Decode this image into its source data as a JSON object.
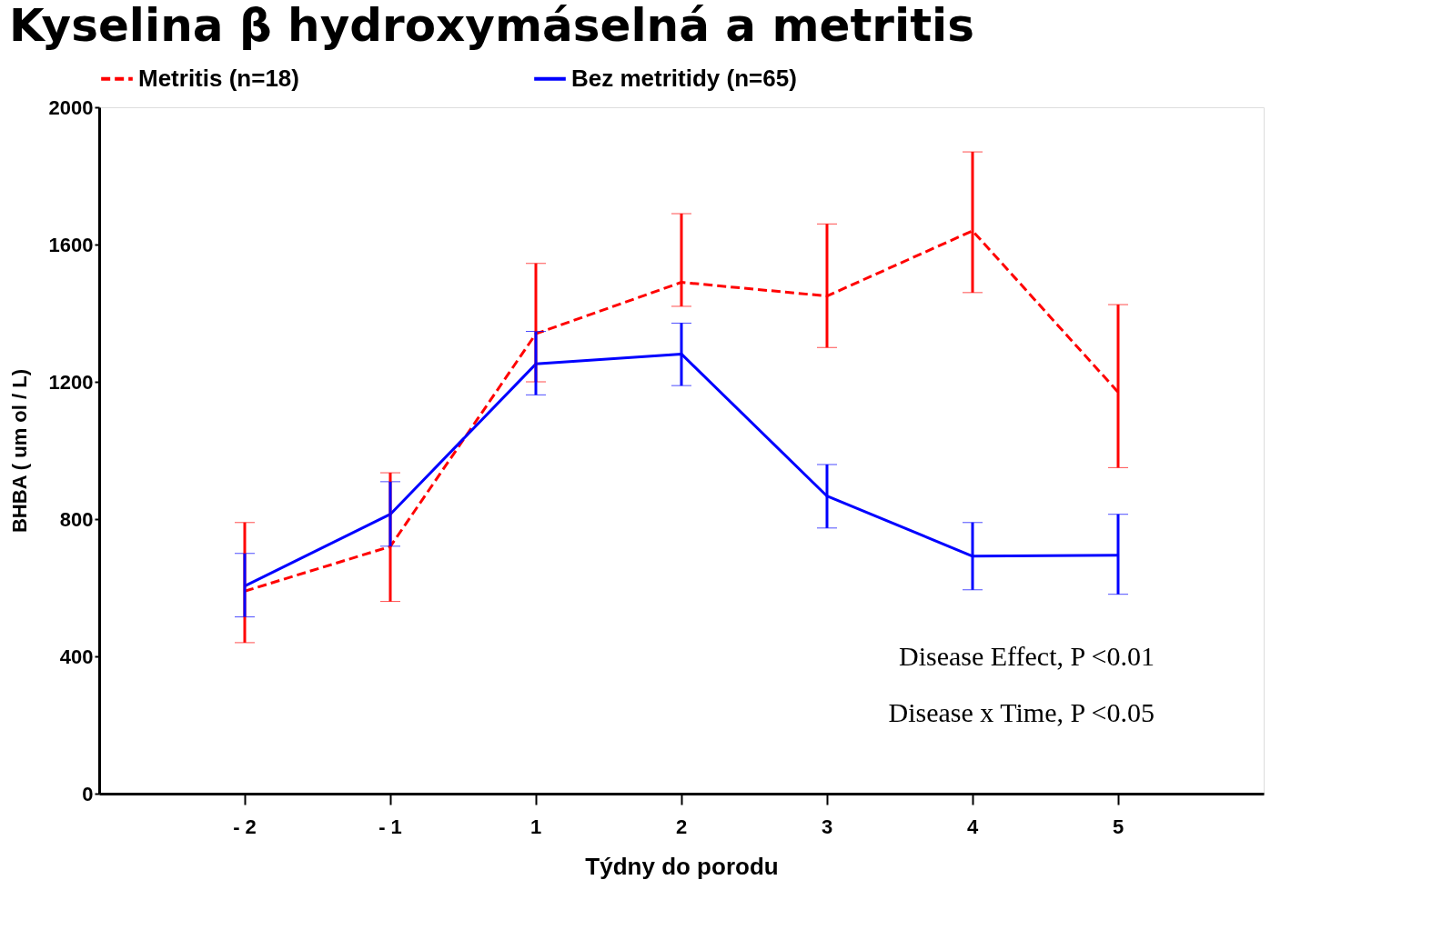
{
  "chart_data": {
    "type": "line",
    "title": "Kyselina β hydroxymáselná a metritis",
    "xlabel": "Týdny do porodu",
    "ylabel": "BHBA ( um ol / L)",
    "categories": [
      "- 2",
      "- 1",
      "1",
      "2",
      "3",
      "4",
      "5"
    ],
    "ylim": [
      0,
      2000
    ],
    "yticks": [
      0,
      400,
      800,
      1200,
      1600,
      2000
    ],
    "series": [
      {
        "name": "Metritis (n=18)",
        "color": "#ff0000",
        "line_style": "dashed",
        "values": [
          590,
          720,
          1340,
          1490,
          1450,
          1640,
          1170
        ],
        "errors": [
          [
            440,
            790
          ],
          [
            560,
            935
          ],
          [
            1200,
            1545
          ],
          [
            1420,
            1690
          ],
          [
            1300,
            1660
          ],
          [
            1460,
            1870
          ],
          [
            950,
            1425
          ]
        ]
      },
      {
        "name": "Bez metritidy (n=65)",
        "color": "#0000ff",
        "line_style": "solid",
        "values": [
          605,
          814,
          1252,
          1281,
          867,
          692,
          695
        ],
        "errors": [
          [
            515,
            700
          ],
          [
            721,
            909
          ],
          [
            1162,
            1347
          ],
          [
            1189,
            1371
          ],
          [
            774,
            959
          ],
          [
            594,
            790
          ],
          [
            581,
            814
          ]
        ]
      }
    ],
    "legend": "top",
    "grid": false,
    "marker": "none",
    "annotations": [
      "Disease Effect, P <0.01",
      "Disease x Time, P <0.05"
    ]
  }
}
